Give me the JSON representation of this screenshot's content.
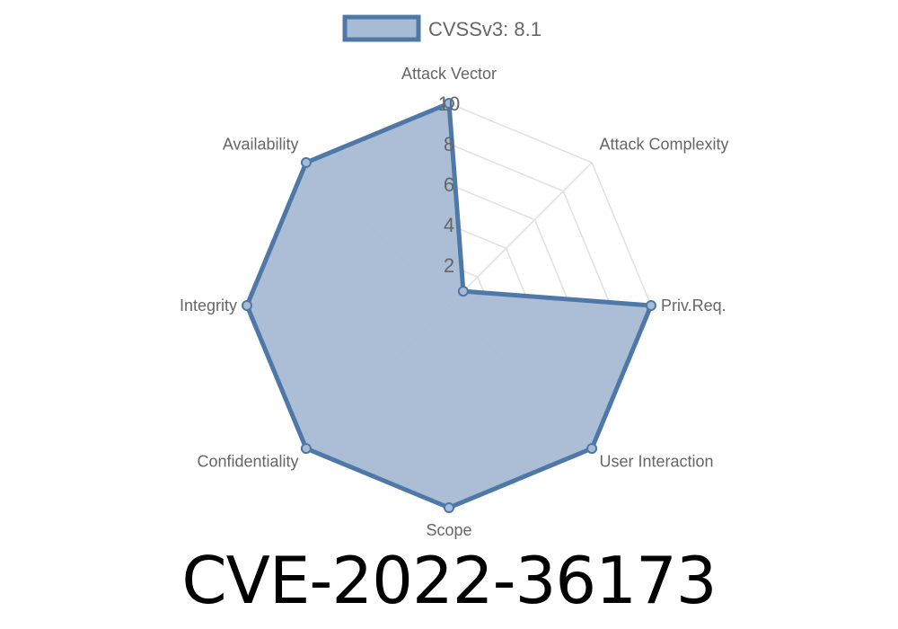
{
  "chart_data": {
    "type": "radar",
    "title": "CVE-2022-36173",
    "legend": {
      "label": "CVSSv3: 8.1",
      "placement": "top"
    },
    "axes": [
      "Attack Vector",
      "Attack Complexity",
      "Priv.Req.",
      "User Interaction",
      "Scope",
      "Confidentiality",
      "Integrity",
      "Availability"
    ],
    "series": [
      {
        "name": "CVSSv3: 8.1",
        "values": [
          10,
          1,
          10,
          10,
          10,
          10,
          10,
          10
        ]
      }
    ],
    "rlim": [
      0,
      10
    ],
    "ticks": [
      "2",
      "4",
      "6",
      "8",
      "10"
    ],
    "grid": true,
    "colors": {
      "line": "#4e78a8",
      "fill": "#a7bbd4",
      "grid": "#e0e0e0"
    }
  }
}
